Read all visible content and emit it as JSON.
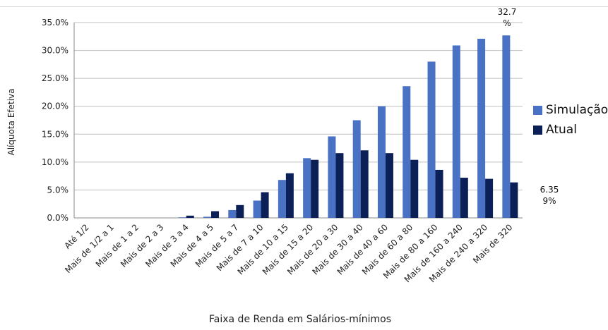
{
  "chart_data": {
    "type": "bar",
    "title": "",
    "xlabel": "Faixa de Renda em Salários-mínimos",
    "ylabel": "Alíquota Efetiva",
    "ylim": [
      0,
      35
    ],
    "yticks": [
      "0.0%",
      "5.0%",
      "10.0%",
      "15.0%",
      "20.0%",
      "25.0%",
      "30.0%",
      "35.0%"
    ],
    "grid": true,
    "legend_position": "right",
    "categories": [
      "Até 1/2",
      "Mais de 1/2 a 1",
      "Mais de 1 a 2",
      "Mais de 2 a 3",
      "Mais de 3 a 4",
      "Mais de 4 a 5",
      "Mais de 5 a 7",
      "Mais de 7 a 10",
      "Mais de 10 a 15",
      "Mais de 15 a 20",
      "Mais de 20 a 30",
      "Mais de 30 a 40",
      "Mais de 40 a 60",
      "Mais de 60 a 80",
      "Mais de 80 a 160",
      "Mais de 160 a 240",
      "Mais de 240 a 320",
      "Mais de 320"
    ],
    "series": [
      {
        "name": "Simulação",
        "color": "#4a72c4",
        "values": [
          0,
          0,
          0,
          0,
          0.1,
          0.2,
          1.4,
          3.1,
          6.8,
          10.7,
          14.6,
          17.5,
          20.0,
          23.6,
          28.0,
          30.9,
          32.1,
          32.7
        ]
      },
      {
        "name": "Atual",
        "color": "#0c2058",
        "values": [
          0,
          0,
          0,
          0,
          0.4,
          1.2,
          2.3,
          4.6,
          8.0,
          10.4,
          11.6,
          12.1,
          11.6,
          10.4,
          8.6,
          7.2,
          7.0,
          6.359
        ]
      }
    ],
    "annotations": [
      {
        "lines": [
          "32.7",
          "%"
        ],
        "series": "Simulação",
        "category": "Mais de 320"
      },
      {
        "lines": [
          "6.35",
          "9%"
        ],
        "series": "Atual",
        "category": "Mais de 320"
      }
    ]
  }
}
